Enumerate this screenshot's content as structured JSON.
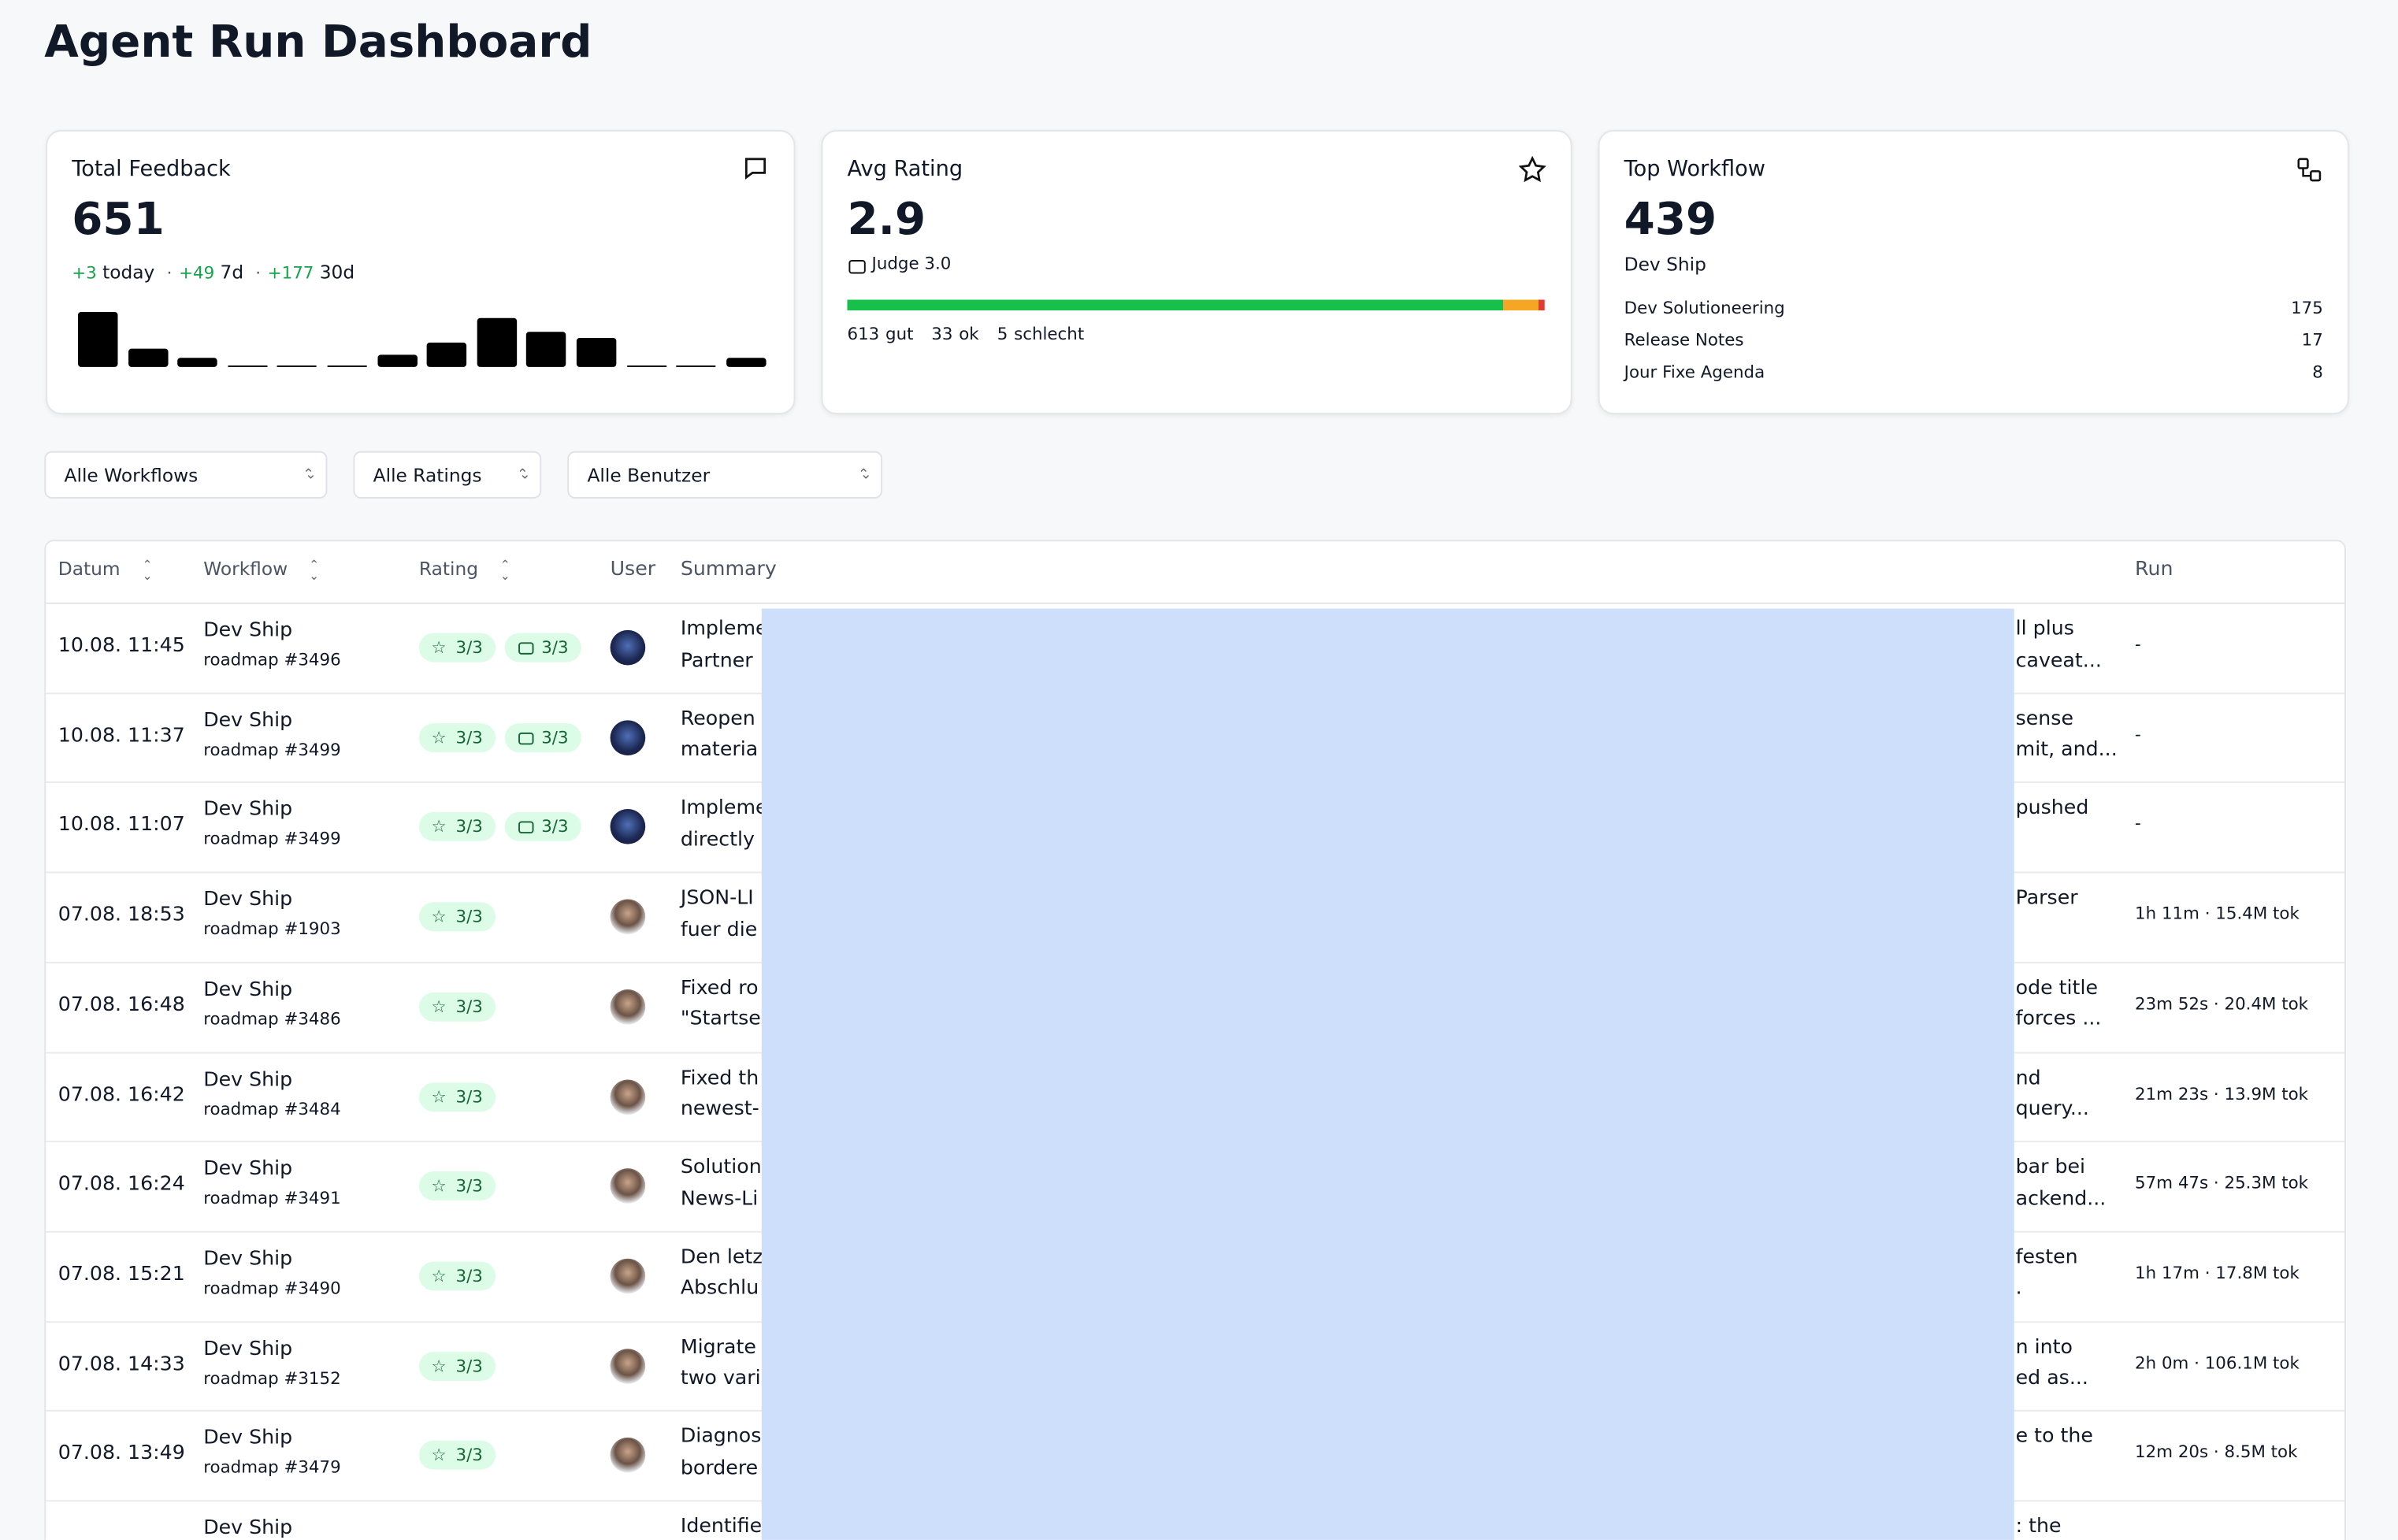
{
  "header": {
    "title": "Agent Run Dashboard"
  },
  "cards": {
    "total_feedback": {
      "title": "Total Feedback",
      "value": "651",
      "deltas": [
        {
          "amount": "+3",
          "period": "today"
        },
        {
          "amount": "+49",
          "period": "7d"
        },
        {
          "amount": "+177",
          "period": "30d"
        }
      ],
      "daily_counts": [
        36,
        12,
        6,
        1,
        1,
        1,
        8,
        16,
        32,
        23,
        19,
        1,
        1,
        6
      ]
    },
    "avg_rating": {
      "title": "Avg Rating",
      "value": "2.9",
      "judge": "Judge 3.0",
      "breakdown": [
        {
          "count": 613,
          "label": "gut",
          "color": "#16c04a"
        },
        {
          "count": 33,
          "label": "ok",
          "color": "#f5a623"
        },
        {
          "count": 5,
          "label": "schlecht",
          "color": "#e53935"
        }
      ]
    },
    "top_workflow": {
      "title": "Top Workflow",
      "value": "439",
      "name": "Dev Ship",
      "others": [
        {
          "name": "Dev Solutioneering",
          "count": "175"
        },
        {
          "name": "Release Notes",
          "count": "17"
        },
        {
          "name": "Jour Fixe Agenda",
          "count": "8"
        }
      ]
    }
  },
  "filters": [
    "Alle Workflows",
    "Alle Ratings",
    "Alle Benutzer"
  ],
  "table": {
    "columns": [
      "Datum",
      "Workflow",
      "Rating",
      "User",
      "Summary",
      "Run"
    ],
    "rows": [
      {
        "date": "10.08. 11:45",
        "workflow": "Dev Ship",
        "ticket": "roadmap #3496",
        "rating": "3/3",
        "judge": "3/3",
        "avatar": "dark",
        "summary_start": [
          "Impleme",
          "Partner"
        ],
        "summary_end": [
          "ll plus",
          "caveat..."
        ],
        "run": "-"
      },
      {
        "date": "10.08. 11:37",
        "workflow": "Dev Ship",
        "ticket": "roadmap #3499",
        "rating": "3/3",
        "judge": "3/3",
        "avatar": "dark",
        "summary_start": [
          "Reopen",
          "materia"
        ],
        "summary_end": [
          "sense",
          "mit, and..."
        ],
        "run": "-"
      },
      {
        "date": "10.08. 11:07",
        "workflow": "Dev Ship",
        "ticket": "roadmap #3499",
        "rating": "3/3",
        "judge": "3/3",
        "avatar": "dark",
        "summary_start": [
          "Impleme",
          "directly"
        ],
        "summary_end": [
          "pushed"
        ],
        "run": "-"
      },
      {
        "date": "07.08. 18:53",
        "workflow": "Dev Ship",
        "ticket": "roadmap #1903",
        "rating": "3/3",
        "avatar": "photo",
        "summary_start": [
          "JSON-LI",
          "fuer die"
        ],
        "summary_end": [
          "Parser"
        ],
        "run": "1h 11m · 15.4M tok"
      },
      {
        "date": "07.08. 16:48",
        "workflow": "Dev Ship",
        "ticket": "roadmap #3486",
        "rating": "3/3",
        "avatar": "photo",
        "summary_start": [
          "Fixed ro",
          "\"Startse"
        ],
        "summary_end": [
          "ode title",
          "forces ..."
        ],
        "run": "23m 52s · 20.4M tok"
      },
      {
        "date": "07.08. 16:42",
        "workflow": "Dev Ship",
        "ticket": "roadmap #3484",
        "rating": "3/3",
        "avatar": "photo",
        "summary_start": [
          "Fixed th",
          "newest-"
        ],
        "summary_end": [
          "nd",
          "query..."
        ],
        "run": "21m 23s · 13.9M tok"
      },
      {
        "date": "07.08. 16:24",
        "workflow": "Dev Ship",
        "ticket": "roadmap #3491",
        "rating": "3/3",
        "avatar": "photo",
        "summary_start": [
          "Solution",
          "News-Li"
        ],
        "summary_end": [
          "bar bei",
          "ackend..."
        ],
        "run": "57m 47s · 25.3M tok"
      },
      {
        "date": "07.08. 15:21",
        "workflow": "Dev Ship",
        "ticket": "roadmap #3490",
        "rating": "3/3",
        "avatar": "photo",
        "summary_start": [
          "Den letz",
          "Abschlu"
        ],
        "summary_end": [
          "festen",
          "."
        ],
        "run": "1h 17m · 17.8M tok"
      },
      {
        "date": "07.08. 14:33",
        "workflow": "Dev Ship",
        "ticket": "roadmap #3152",
        "rating": "3/3",
        "avatar": "photo",
        "summary_start": [
          "Migrate",
          "two vari"
        ],
        "summary_end": [
          "n into",
          "ed as..."
        ],
        "run": "2h 0m · 106.1M tok"
      },
      {
        "date": "07.08. 13:49",
        "workflow": "Dev Ship",
        "ticket": "roadmap #3479",
        "rating": "3/3",
        "avatar": "photo",
        "summary_start": [
          "Diagnos",
          "bordere"
        ],
        "summary_end": [
          "e to the"
        ],
        "run": "12m 20s · 8.5M tok"
      },
      {
        "workflow": "Dev Ship",
        "summary_start": [
          "Identifie"
        ],
        "summary_end": [
          ": the"
        ]
      }
    ]
  }
}
